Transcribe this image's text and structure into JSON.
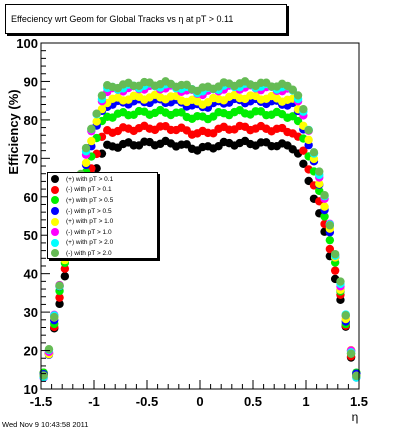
{
  "chart_data": {
    "type": "scatter",
    "title": "Effeciency wrt Geom for Global Tracks vs   η at pT > 0.11",
    "xlabel": "η",
    "ylabel": "Efficiency (%)",
    "xlim": [
      -1.5,
      1.5
    ],
    "ylim": [
      10,
      100
    ],
    "xticks": [
      "-1.5",
      "-1",
      "-0.5",
      "0",
      "0.5",
      "1",
      "1.5"
    ],
    "yticks": [
      "10",
      "20",
      "30",
      "40",
      "50",
      "60",
      "70",
      "80",
      "90",
      "100"
    ],
    "grid": false,
    "legend_position": "left-middle",
    "series": [
      {
        "name": "(+) with pT > 0.1",
        "color": "#000000",
        "plateau": 74
      },
      {
        "name": "(-) with pT > 0.1",
        "color": "#ff0000",
        "plateau": 78
      },
      {
        "name": "(+) with pT > 0.5",
        "color": "#00ee00",
        "plateau": 82
      },
      {
        "name": "(-) with pT > 0.5",
        "color": "#0000ff",
        "plateau": 85
      },
      {
        "name": "(+) with pT > 1.0",
        "color": "#ffff00",
        "plateau": 86
      },
      {
        "name": "(-) with pT > 1.0",
        "color": "#ff00ff",
        "plateau": 88.5
      },
      {
        "name": "(+) with pT > 2.0",
        "color": "#00ffff",
        "plateau": 89
      },
      {
        "name": "(-) with pT > 2.0",
        "color": "#66bb55",
        "plateau": 89.5
      }
    ]
  },
  "footer": "Wed Nov  9 10:43:58 2011"
}
